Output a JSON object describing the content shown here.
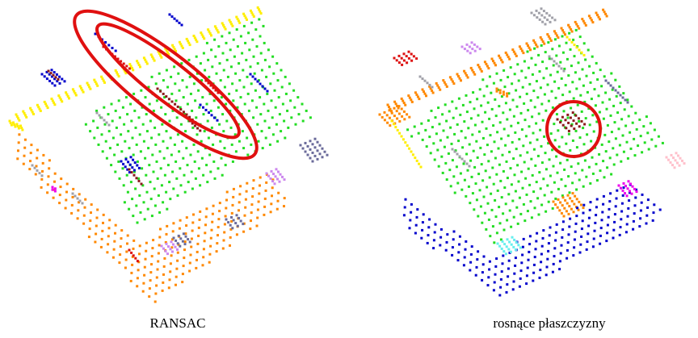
{
  "captions": {
    "left": "RANSAC",
    "right": "rosnące płaszczyzny"
  },
  "colors": {
    "plane_main": "#22dd22",
    "plane_yellow": "#ffee00",
    "plane_orange": "#ff8800",
    "plane_blue": "#0000cc",
    "plane_darkred": "#8b1a1a",
    "plane_red": "#dd1111",
    "plane_grey": "#a0a0a8",
    "plane_slate": "#6a6a9a",
    "plane_magenta": "#ee00ee",
    "plane_pink": "#ffc0cb",
    "plane_cyan": "#66eeee",
    "plane_violet": "#cc88ee",
    "highlight": "#e01010"
  },
  "icons": [
    "highlight-ellipse-outer",
    "highlight-ellipse-inner",
    "highlight-circle"
  ]
}
